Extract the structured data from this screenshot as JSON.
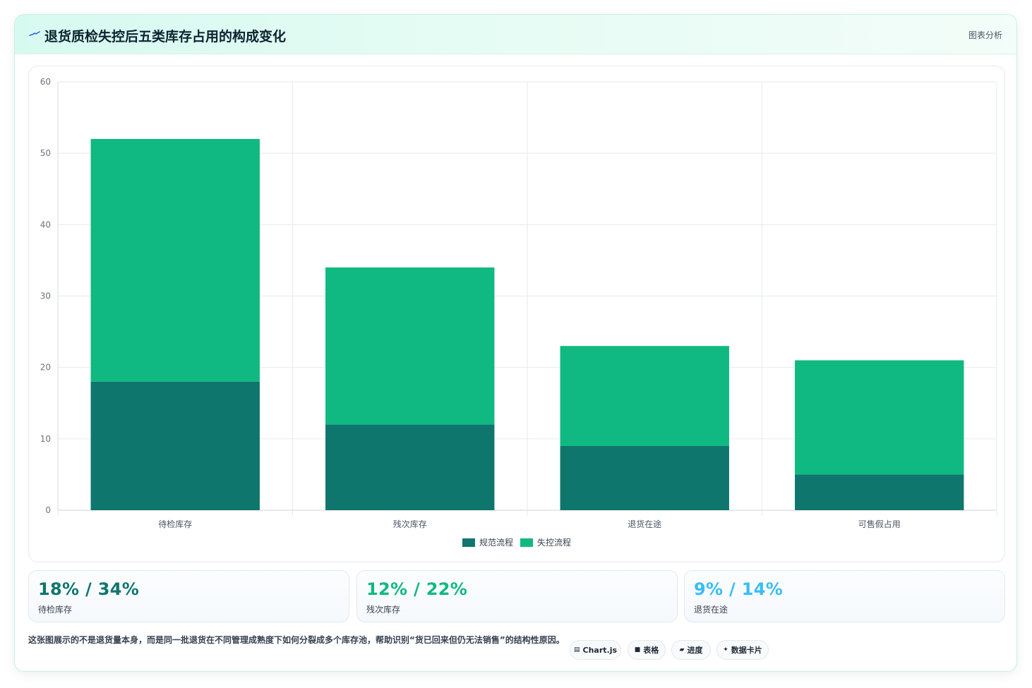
{
  "header": {
    "title": "退货质检失控后五类库存占用的构成变化",
    "tag": "图表分析",
    "icon": "pulse-line-icon"
  },
  "colors": {
    "series_normal": "#0f766e",
    "series_out_of_control": "#10b981",
    "stat_1": "#0f766e",
    "stat_2": "#10b981",
    "stat_3": "#38bdf8"
  },
  "chart_data": {
    "type": "bar",
    "stacked": true,
    "categories": [
      "待检库存",
      "残次库存",
      "退货在途",
      "可售假占用"
    ],
    "series": [
      {
        "name": "规范流程",
        "values": [
          18,
          12,
          9,
          5
        ]
      },
      {
        "name": "失控流程",
        "values": [
          34,
          22,
          14,
          16
        ]
      }
    ],
    "ylim": [
      0,
      60
    ],
    "yticks": [
      0,
      10,
      20,
      30,
      40,
      50,
      60
    ],
    "grid": true,
    "legend": "bottom-center"
  },
  "stats": [
    {
      "value": "18% / 34%",
      "label": "待检库存"
    },
    {
      "value": "12% / 22%",
      "label": "残次库存"
    },
    {
      "value": "9% / 14%",
      "label": "退货在途"
    }
  ],
  "description": "这张图展示的不是退货量本身，而是同一批退货在不同管理成熟度下如何分裂成多个库存池，帮助识别“货已回来但仍无法销售”的结构性原因。",
  "chips": [
    {
      "label": "Chart.js",
      "icon": "▤"
    },
    {
      "label": "表格",
      "icon": "■"
    },
    {
      "label": "进度",
      "icon": "▰"
    },
    {
      "label": "数据卡片",
      "icon": "✦"
    }
  ]
}
